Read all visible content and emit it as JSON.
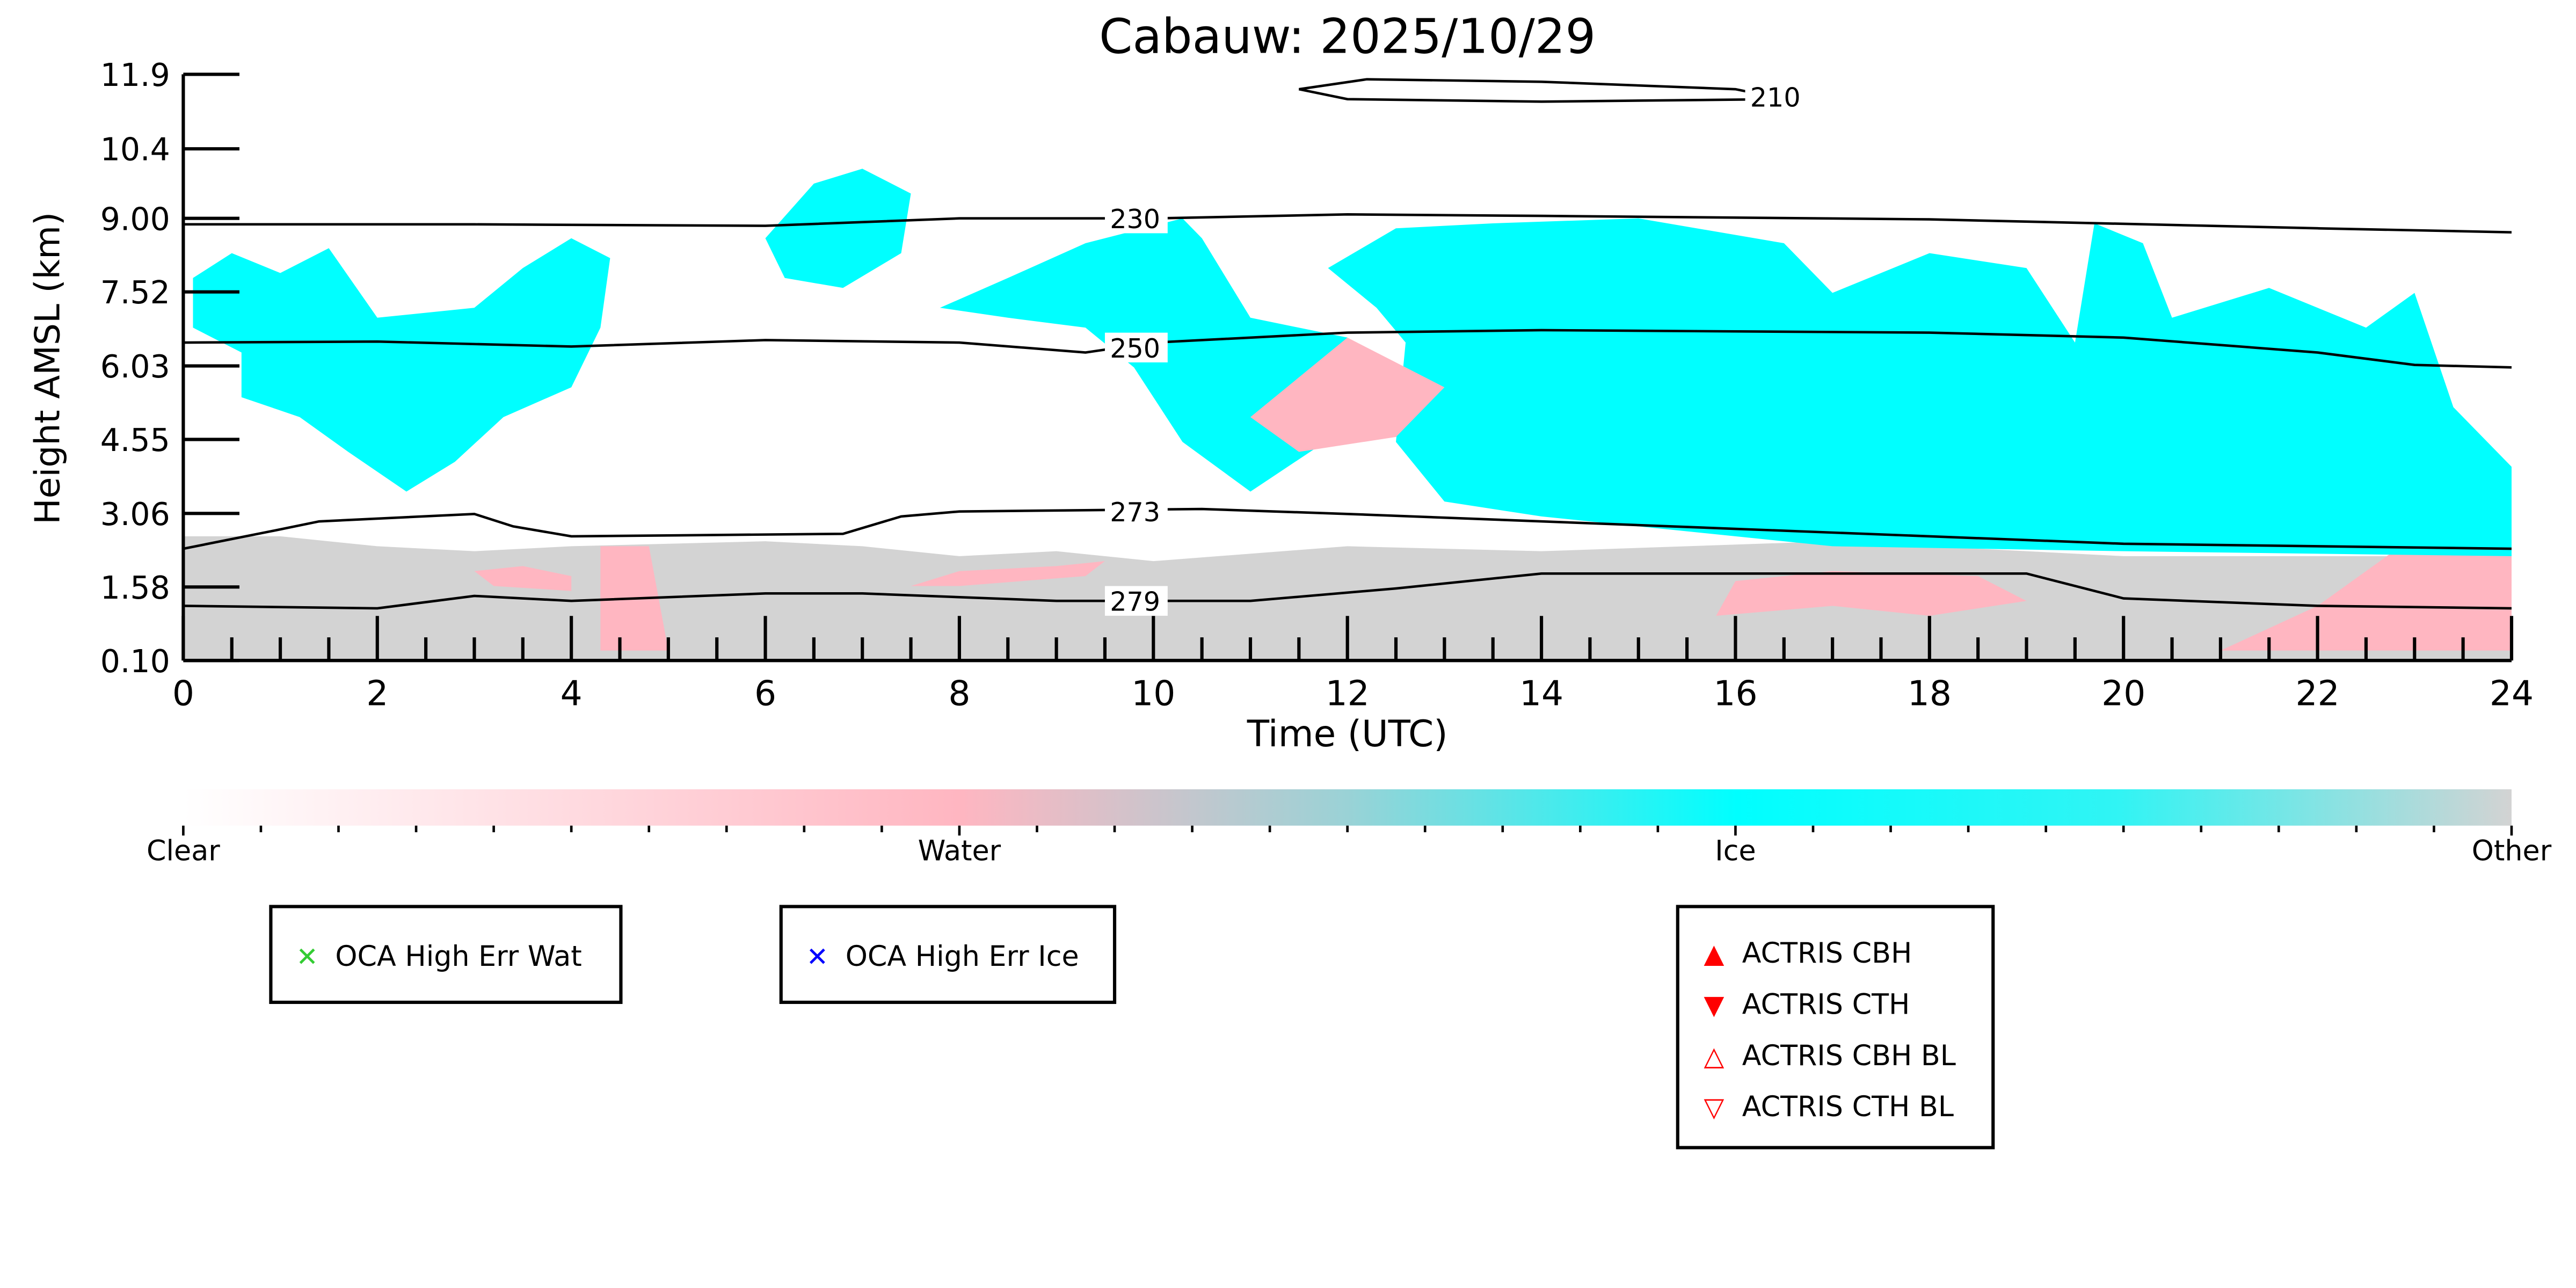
{
  "chart_data": {
    "type": "heatmap",
    "title": "Cabauw: 2025/10/29",
    "xlabel": "Time (UTC)",
    "ylabel": "Height AMSL (km)",
    "xlim": [
      0,
      24
    ],
    "ylim": [
      0.1,
      11.9
    ],
    "xticks": [
      "0",
      "2",
      "4",
      "6",
      "8",
      "10",
      "12",
      "14",
      "16",
      "18",
      "20",
      "22",
      "24"
    ],
    "yticks": [
      "0.10",
      "1.58",
      "3.06",
      "4.55",
      "6.03",
      "7.52",
      "9.00",
      "10.4",
      "11.9"
    ],
    "ytick_values": [
      0.1,
      1.58,
      3.06,
      4.55,
      6.03,
      7.52,
      9.0,
      10.4,
      11.9
    ],
    "colors": {
      "clear": "#ffffff",
      "water": "#ffb6c1",
      "ice": "#00ffff",
      "other": "#d3d3d3"
    },
    "regions": [
      {
        "class": "other",
        "points": [
          [
            0,
            0.1
          ],
          [
            0,
            2.6
          ],
          [
            1,
            2.6
          ],
          [
            2,
            2.4
          ],
          [
            3,
            2.3
          ],
          [
            4,
            2.4
          ],
          [
            6,
            2.5
          ],
          [
            7,
            2.4
          ],
          [
            8,
            2.2
          ],
          [
            9,
            2.3
          ],
          [
            10,
            2.1
          ],
          [
            12,
            2.4
          ],
          [
            14,
            2.3
          ],
          [
            17,
            2.5
          ],
          [
            20,
            2.2
          ],
          [
            24,
            2.2
          ],
          [
            24,
            0.1
          ]
        ]
      },
      {
        "class": "water",
        "points": [
          [
            4.3,
            0.3
          ],
          [
            4.3,
            2.4
          ],
          [
            4.8,
            2.4
          ],
          [
            5.0,
            0.3
          ]
        ]
      },
      {
        "class": "water",
        "points": [
          [
            3,
            1.9
          ],
          [
            3.5,
            2.0
          ],
          [
            4,
            1.8
          ],
          [
            4,
            1.5
          ],
          [
            3.2,
            1.6
          ]
        ]
      },
      {
        "class": "water",
        "points": [
          [
            7.5,
            1.6
          ],
          [
            8,
            1.9
          ],
          [
            9,
            2.0
          ],
          [
            9.5,
            2.1
          ],
          [
            9.3,
            1.8
          ],
          [
            8,
            1.6
          ]
        ]
      },
      {
        "class": "water",
        "points": [
          [
            15.8,
            1.0
          ],
          [
            16,
            1.7
          ],
          [
            17,
            1.9
          ],
          [
            18.5,
            1.8
          ],
          [
            19,
            1.3
          ],
          [
            18,
            1.0
          ],
          [
            17,
            1.2
          ]
        ]
      },
      {
        "class": "water",
        "points": [
          [
            21,
            0.3
          ],
          [
            22,
            1.2
          ],
          [
            23,
            2.6
          ],
          [
            24,
            2.6
          ],
          [
            24,
            0.3
          ]
        ]
      },
      {
        "class": "ice",
        "points": [
          [
            0.1,
            7.8
          ],
          [
            0.5,
            8.3
          ],
          [
            1,
            7.9
          ],
          [
            1.5,
            8.4
          ],
          [
            2,
            7.0
          ],
          [
            3,
            7.2
          ],
          [
            3.5,
            8.0
          ],
          [
            4,
            8.6
          ],
          [
            4.4,
            8.2
          ],
          [
            4.3,
            6.8
          ],
          [
            4,
            5.6
          ],
          [
            3.3,
            5.0
          ],
          [
            2.8,
            4.1
          ],
          [
            2.3,
            3.5
          ],
          [
            1.7,
            4.3
          ],
          [
            1.2,
            5.0
          ],
          [
            0.6,
            5.4
          ],
          [
            0.6,
            6.3
          ],
          [
            0.1,
            6.8
          ]
        ]
      },
      {
        "class": "ice",
        "points": [
          [
            6,
            8.6
          ],
          [
            6.5,
            9.7
          ],
          [
            7,
            10.0
          ],
          [
            7.5,
            9.5
          ],
          [
            7.4,
            8.3
          ],
          [
            6.8,
            7.6
          ],
          [
            6.2,
            7.8
          ]
        ]
      },
      {
        "class": "ice",
        "points": [
          [
            7.8,
            7.2
          ],
          [
            8.5,
            7.8
          ],
          [
            9.3,
            8.5
          ],
          [
            10.3,
            9.0
          ],
          [
            10.5,
            8.6
          ],
          [
            11,
            7.0
          ],
          [
            12,
            6.6
          ],
          [
            12.5,
            5.9
          ],
          [
            12,
            4.8
          ],
          [
            11,
            3.5
          ],
          [
            10.3,
            4.5
          ],
          [
            9.8,
            6.0
          ],
          [
            9.3,
            6.8
          ],
          [
            8.5,
            7.0
          ]
        ]
      },
      {
        "class": "ice",
        "points": [
          [
            11.8,
            8.0
          ],
          [
            12.5,
            8.8
          ],
          [
            13.5,
            8.9
          ],
          [
            15,
            9.0
          ],
          [
            16.5,
            8.5
          ],
          [
            17,
            7.5
          ],
          [
            18,
            8.3
          ],
          [
            19,
            8.0
          ],
          [
            19.5,
            6.5
          ],
          [
            19.7,
            8.9
          ],
          [
            20.2,
            8.5
          ],
          [
            20.5,
            7.0
          ],
          [
            21.5,
            7.6
          ],
          [
            22.5,
            6.8
          ],
          [
            23,
            7.5
          ],
          [
            23.4,
            5.2
          ],
          [
            24,
            4.0
          ],
          [
            24,
            2.2
          ],
          [
            20,
            2.3
          ],
          [
            17,
            2.4
          ],
          [
            15.5,
            2.7
          ],
          [
            14,
            3.0
          ],
          [
            13,
            3.3
          ],
          [
            12.5,
            4.5
          ],
          [
            12.6,
            6.5
          ],
          [
            12.3,
            7.2
          ]
        ]
      },
      {
        "class": "water",
        "points": [
          [
            11,
            5.0
          ],
          [
            12,
            6.6
          ],
          [
            13,
            5.6
          ],
          [
            12.5,
            4.6
          ],
          [
            11.5,
            4.3
          ]
        ]
      }
    ],
    "contours": [
      {
        "label": "210",
        "points": [
          [
            11.5,
            11.6
          ],
          [
            12.2,
            11.8
          ],
          [
            14,
            11.75
          ],
          [
            16,
            11.6
          ],
          [
            16.5,
            11.4
          ],
          [
            14,
            11.35
          ],
          [
            12,
            11.4
          ],
          [
            11.5,
            11.6
          ]
        ],
        "label_at": [
          16.1,
          11.45
        ]
      },
      {
        "label": "230",
        "points": [
          [
            0,
            8.88
          ],
          [
            3,
            8.88
          ],
          [
            6,
            8.85
          ],
          [
            8,
            9.0
          ],
          [
            10,
            9.0
          ],
          [
            12,
            9.08
          ],
          [
            14,
            9.05
          ],
          [
            18,
            8.98
          ],
          [
            22,
            8.8
          ],
          [
            24,
            8.72
          ]
        ],
        "label_at": [
          9.5,
          9.0
        ]
      },
      {
        "label": "250",
        "points": [
          [
            0,
            6.5
          ],
          [
            2,
            6.52
          ],
          [
            4,
            6.42
          ],
          [
            6,
            6.55
          ],
          [
            8,
            6.5
          ],
          [
            9.3,
            6.3
          ],
          [
            10,
            6.5
          ],
          [
            12,
            6.7
          ],
          [
            14,
            6.75
          ],
          [
            18,
            6.7
          ],
          [
            20,
            6.6
          ],
          [
            22,
            6.3
          ],
          [
            23,
            6.05
          ],
          [
            24,
            6.0
          ]
        ],
        "label_at": [
          9.5,
          6.4
        ]
      },
      {
        "label": "273",
        "points": [
          [
            0,
            2.35
          ],
          [
            0.9,
            2.7
          ],
          [
            1.4,
            2.9
          ],
          [
            3,
            3.05
          ],
          [
            3.4,
            2.8
          ],
          [
            4,
            2.6
          ],
          [
            6.8,
            2.65
          ],
          [
            7.4,
            3.0
          ],
          [
            8,
            3.1
          ],
          [
            10.5,
            3.15
          ],
          [
            12,
            3.05
          ],
          [
            16,
            2.75
          ],
          [
            20,
            2.45
          ],
          [
            24,
            2.35
          ]
        ],
        "label_at": [
          9.5,
          3.1
        ]
      },
      {
        "label": "279",
        "points": [
          [
            0,
            1.2
          ],
          [
            2,
            1.15
          ],
          [
            3,
            1.4
          ],
          [
            4,
            1.3
          ],
          [
            6,
            1.45
          ],
          [
            7,
            1.45
          ],
          [
            9,
            1.3
          ],
          [
            11,
            1.3
          ],
          [
            12.5,
            1.55
          ],
          [
            14,
            1.85
          ],
          [
            16,
            1.85
          ],
          [
            19,
            1.85
          ],
          [
            20,
            1.35
          ],
          [
            22,
            1.2
          ],
          [
            24,
            1.15
          ]
        ],
        "label_at": [
          9.5,
          1.3
        ]
      }
    ],
    "colorbar": {
      "labels": [
        "Clear",
        "Water",
        "Ice",
        "Other"
      ]
    },
    "legends": [
      {
        "entries": [
          {
            "label": "OCA High Err Wat",
            "symbol": "x",
            "color": "#33cc33"
          }
        ]
      },
      {
        "entries": [
          {
            "label": "OCA High Err Ice",
            "symbol": "x",
            "color": "#0000ff"
          }
        ]
      },
      {
        "entries": [
          {
            "label": "ACTRIS CBH",
            "symbol": "▲",
            "color": "#ff0000"
          },
          {
            "label": "ACTRIS CTH",
            "symbol": "▼",
            "color": "#ff0000"
          },
          {
            "label": "ACTRIS CBH BL",
            "symbol": "△",
            "color": "#ff0000"
          },
          {
            "label": "ACTRIS CTH BL",
            "symbol": "▽",
            "color": "#ff0000"
          }
        ]
      }
    ]
  }
}
